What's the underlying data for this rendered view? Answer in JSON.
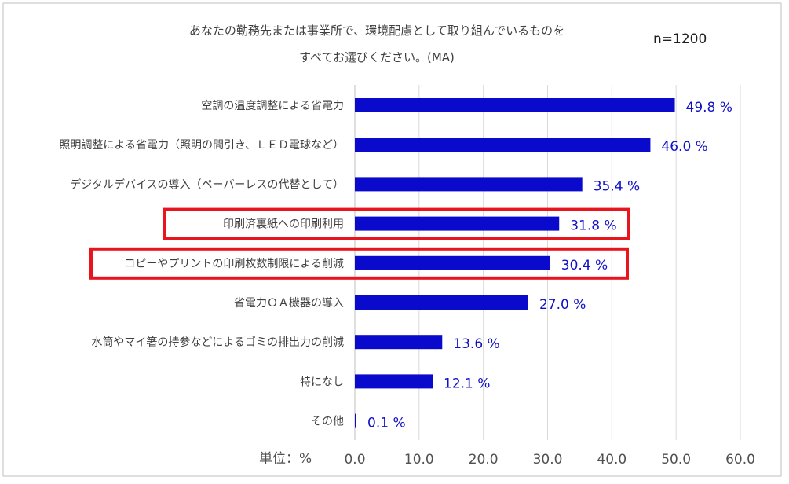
{
  "chart_data": {
    "type": "bar",
    "orientation": "horizontal",
    "title_line1": "あなたの勤務先または事業所で、環境配慮として取り組んでいるものを",
    "title_line2": "すべてお選びください。(MA)",
    "sample_size": "n=1200",
    "unit_label": "単位：%",
    "categories": [
      "空調の温度調整による省電力",
      "照明調整による省電力（照明の間引き、ＬＥＤ電球など）",
      "デジタルデバイスの導入（ペーパーレスの代替として）",
      "印刷済裏紙への印刷利用",
      "コピーやプリントの印刷枚数制限による削減",
      "省電力ＯＡ機器の導入",
      "水筒やマイ箸の持参などによるゴミの排出力の削減",
      "特になし",
      "その他"
    ],
    "values": [
      49.8,
      46.0,
      35.4,
      31.8,
      30.4,
      27.0,
      13.6,
      12.1,
      0.1
    ],
    "value_labels": [
      "49.8 %",
      "46.0 %",
      "35.4 %",
      "31.8 %",
      "30.4 %",
      "27.0 %",
      "13.6 %",
      "12.1 %",
      "0.1 %"
    ],
    "highlighted": [
      false,
      false,
      false,
      true,
      true,
      false,
      false,
      false,
      false
    ],
    "xlim": [
      0,
      60
    ],
    "xticks": [
      "0.0",
      "10.0",
      "20.0",
      "30.0",
      "40.0",
      "50.0",
      "60.0"
    ],
    "grid": true,
    "bar_color": "#0a0acd",
    "label_color": "#1010c8",
    "highlight_color": "#e8141e",
    "grid_color": "#d9d9d9"
  }
}
